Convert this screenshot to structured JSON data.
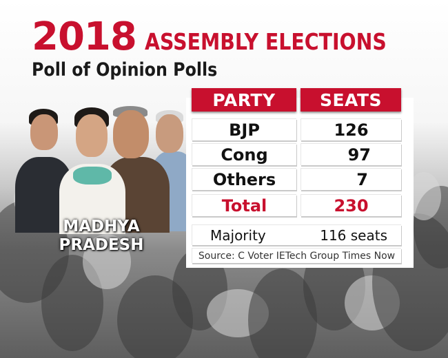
{
  "header": {
    "year": "2018",
    "title": "ASSEMBLY ELECTIONS",
    "subtitle": "Poll of Opinion Polls"
  },
  "state": {
    "line1": "MADHYA",
    "line2": "PRADESH"
  },
  "table": {
    "columns": [
      "PARTY",
      "SEATS"
    ],
    "rows": [
      {
        "party": "BJP",
        "seats": "126"
      },
      {
        "party": "Cong",
        "seats": "97"
      },
      {
        "party": "Others",
        "seats": "7"
      }
    ],
    "total": {
      "label": "Total",
      "seats": "230"
    }
  },
  "majority": {
    "label": "Majority",
    "value": "116 seats"
  },
  "source": "Source:  C Voter  IETech Group  Times Now",
  "colors": {
    "accent": "#c8102e",
    "text": "#111111",
    "background": "#ffffff"
  },
  "portraits": {
    "count": 4
  }
}
